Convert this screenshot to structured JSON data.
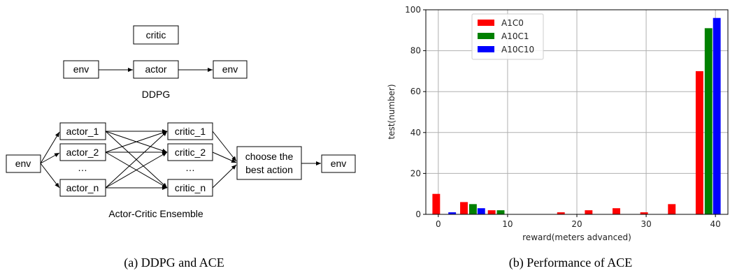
{
  "diagram": {
    "ddpg": {
      "critic": "critic",
      "env_in": "env",
      "actor": "actor",
      "env_out": "env",
      "title": "DDPG"
    },
    "ace": {
      "env_in": "env",
      "actors": [
        "actor_1",
        "actor_2",
        "…",
        "actor_n"
      ],
      "critics": [
        "critic_1",
        "critic_2",
        "…",
        "critic_n"
      ],
      "choose_line1": "choose the",
      "choose_line2": "best action",
      "env_out": "env",
      "title": "Actor-Critic Ensemble"
    },
    "caption": "(a) DDPG and ACE"
  },
  "chart_data": {
    "type": "bar",
    "xlabel": "reward(meters advanced)",
    "ylabel": "test(number)",
    "xlim": [
      -1.8,
      41.8
    ],
    "ylim": [
      0,
      100
    ],
    "xticks": [
      0,
      10,
      20,
      30,
      40
    ],
    "yticks": [
      0,
      20,
      40,
      60,
      80,
      100
    ],
    "grid": true,
    "legend_position": "top-left",
    "bar_width": 1.1,
    "series": [
      {
        "name": "A1C0",
        "color": "#ff0000",
        "x": [
          -0.3,
          3.7,
          7.7,
          17.7,
          21.7,
          25.7,
          29.7,
          33.7,
          37.7
        ],
        "values": [
          10,
          6,
          2,
          1,
          2,
          3,
          1,
          5,
          70
        ]
      },
      {
        "name": "A10C1",
        "color": "#008000",
        "x": [
          5.0,
          9.0,
          39.0
        ],
        "values": [
          5,
          2,
          91
        ]
      },
      {
        "name": "A10C10",
        "color": "#0000ff",
        "x": [
          2.0,
          6.2,
          40.2
        ],
        "values": [
          1,
          3,
          96
        ]
      }
    ],
    "caption": "(b) Performance of ACE"
  }
}
